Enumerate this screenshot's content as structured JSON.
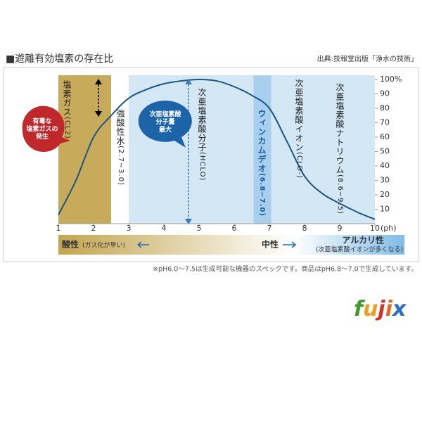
{
  "header": {
    "title": "■遊離有効塩素の存在比",
    "source": "出典:技報堂出版「浄水の技術」"
  },
  "chart_data": {
    "type": "line",
    "x": [
      1,
      1.5,
      2,
      2.5,
      3,
      3.5,
      4,
      4.5,
      5,
      5.5,
      6,
      6.5,
      7,
      7.5,
      8,
      8.5,
      9,
      9.5,
      10
    ],
    "values": [
      6,
      30,
      60,
      75,
      87,
      93,
      97,
      99,
      100,
      99,
      95,
      89,
      80,
      57,
      33,
      21,
      14,
      8,
      3
    ],
    "color": "#1a5584",
    "xlim": [
      1,
      10
    ],
    "xticks": [
      1,
      2,
      3,
      4,
      5,
      6,
      7,
      8,
      9,
      10
    ],
    "xlabel": "(ph)",
    "ylim": [
      0,
      100
    ],
    "yticks": [
      10,
      20,
      30,
      40,
      50,
      60,
      70,
      80,
      90,
      {
        "value": 100,
        "label": "100%"
      }
    ],
    "bands": [
      {
        "xrange": [
          1,
          2.5
        ],
        "color": "#c8ab5a"
      },
      {
        "xrange": [
          2.5,
          3
        ],
        "color": "#ffffff"
      },
      {
        "xrange": [
          6.55,
          7.05
        ],
        "color": "#a8cfee"
      }
    ],
    "annotations": [
      {
        "text": "塩素ガス",
        "note": "(CL2)"
      },
      {
        "text": "強酸性水",
        "note": "(2.7~3.0)"
      },
      {
        "text": "次亜塩素酸分子",
        "note": "(HCLO)"
      },
      {
        "text": "ウィンカムデオ",
        "note": "(6.8~7.0)"
      },
      {
        "text": "次亜塩素酸イオン",
        "note": "(CLO-)"
      },
      {
        "text": "次亜塩素酸ナトリウム",
        "note": "(8.6~9.5)"
      }
    ],
    "callouts": [
      {
        "lines": [
          "有毒な",
          "塩素ガスの",
          "発生"
        ]
      },
      {
        "lines": [
          "次亜塩素酸",
          "分子量",
          "最大"
        ]
      }
    ]
  },
  "scale_bar": {
    "acid": "酸性",
    "acid_note": "(ガス化が早い)",
    "neutral": "中性",
    "alkaline": "アルカリ性",
    "alkaline_note": "(次亜塩素酸イオンが多くなる)"
  },
  "footnote": "※pH6.0～7.5は生成可能な機器のスペックです。商品はpH6.8～7.0で生成しています。",
  "logo": {
    "letters": [
      "f",
      "u",
      "j",
      "i",
      "x"
    ],
    "colors": [
      "#3f9a2e",
      "#f0a020",
      "#d6302a",
      "#e8681e",
      "#2a70c0"
    ]
  }
}
